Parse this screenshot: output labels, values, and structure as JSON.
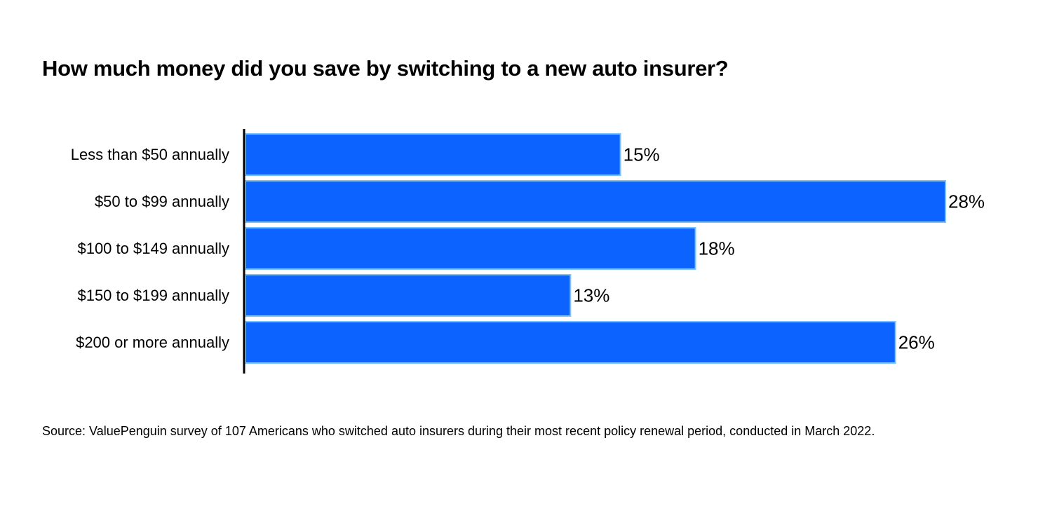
{
  "chart_data": {
    "type": "bar",
    "orientation": "horizontal",
    "title": "How much money did you save by switching to a new auto insurer?",
    "categories": [
      "Less than $50 annually",
      "$50 to $99 annually",
      "$100 to $149 annually",
      "$150 to $199 annually",
      "$200 or more annually"
    ],
    "values": [
      15,
      28,
      18,
      13,
      26
    ],
    "value_labels": [
      "15%",
      "28%",
      "18%",
      "13%",
      "26%"
    ],
    "xlim": [
      0,
      28
    ],
    "grid": false,
    "legend": "none",
    "bar_color": "#0d63ff",
    "bar_edge_color": "#7cc4ff"
  },
  "source": "Source: ValuePenguin survey of 107 Americans who switched auto insurers during their most recent policy renewal period, conducted in March 2022."
}
